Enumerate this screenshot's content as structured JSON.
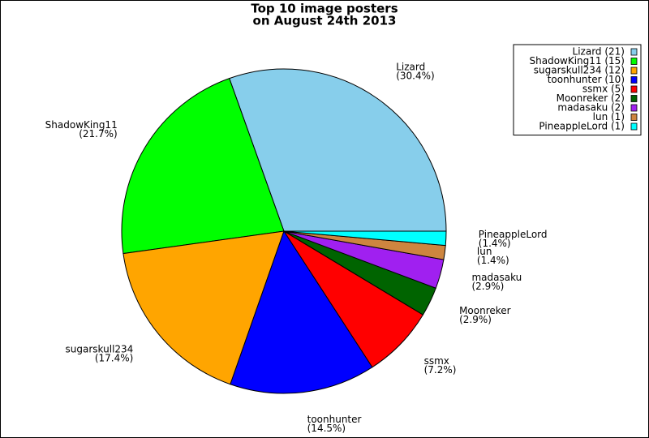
{
  "chart_data": {
    "type": "pie",
    "title": [
      "Top 10 image posters",
      "on August 24th 2013"
    ],
    "categories": [
      "Lizard",
      "ShadowKing11",
      "sugarskull234",
      "toonhunter",
      "ssmx",
      "Moonreker",
      "madasaku",
      "lun",
      "PineappleLord"
    ],
    "values": [
      30.4,
      21.7,
      17.4,
      14.5,
      7.2,
      2.9,
      2.9,
      1.4,
      1.4
    ],
    "value_labels": [
      "(30.4%)",
      "(21.7%)",
      "(17.4%)",
      "(14.5%)",
      "(7.2%)",
      "(2.9%)",
      "(2.9%)",
      "(1.4%)",
      "(1.4%)"
    ],
    "legend": [
      "Lizard (21)",
      "ShadowKing11 (15)",
      "sugarskull234 (12)",
      "toonhunter (10)",
      "ssmx (5)",
      "Moonreker (2)",
      "madasaku (2)",
      "lun (1)",
      "PineappleLord (1)"
    ],
    "colors": [
      "#87ceeb",
      "#00ff00",
      "#ffa500",
      "#0000ff",
      "#ff0000",
      "#006400",
      "#a020f0",
      "#cd853f",
      "#00ffff"
    ],
    "legend_position": "upper right"
  }
}
